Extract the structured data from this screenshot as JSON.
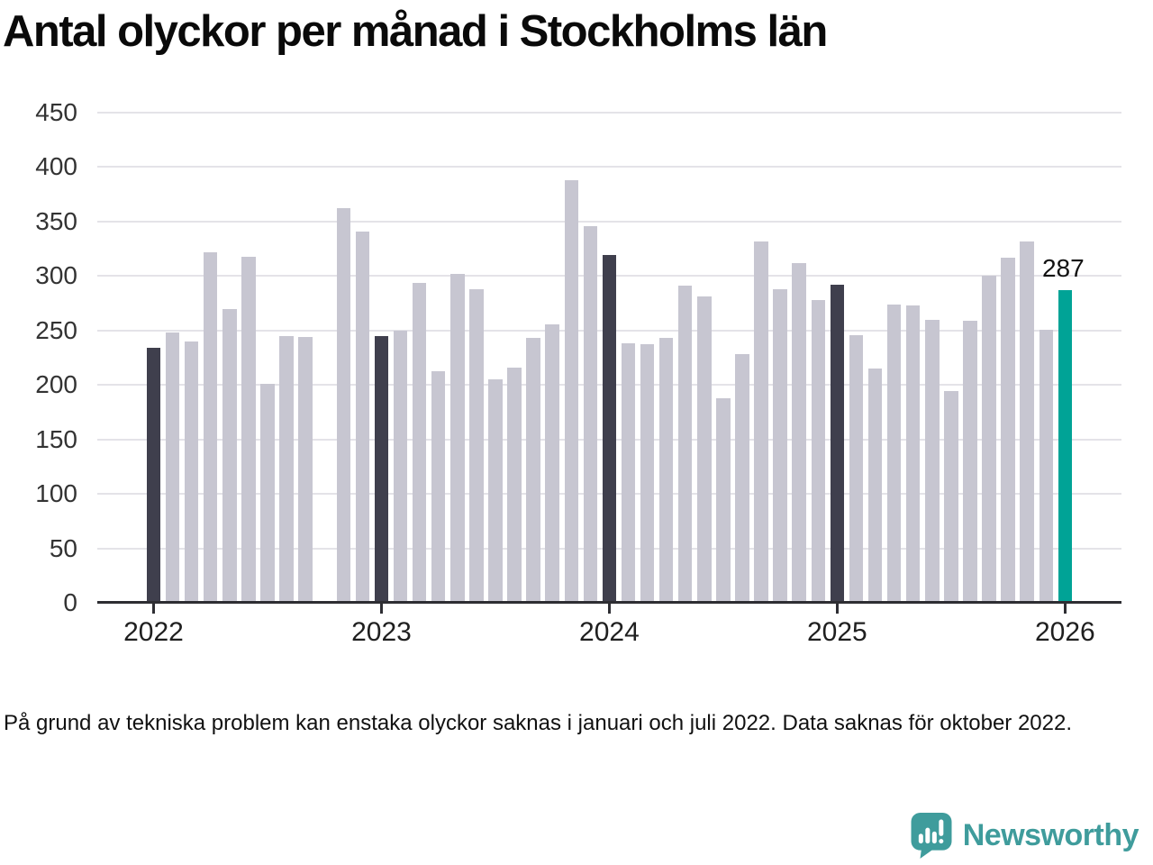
{
  "chart_data": {
    "type": "bar",
    "title": "Antal olyckor per månad i Stockholms län",
    "x_axis": {
      "tick_labels": [
        "2022",
        "2023",
        "2024",
        "2025",
        "2026"
      ]
    },
    "y_axis": {
      "ticks": [
        0,
        50,
        100,
        150,
        200,
        250,
        300,
        350,
        400,
        450
      ],
      "range": [
        0,
        450
      ],
      "grid": true
    },
    "series": [
      {
        "year": "2022",
        "values": [
          234,
          248,
          240,
          322,
          270,
          318,
          201,
          245,
          244,
          null,
          362,
          341
        ]
      },
      {
        "year": "2023",
        "values": [
          245,
          250,
          294,
          213,
          302,
          288,
          205,
          216,
          243,
          256,
          388,
          346
        ]
      },
      {
        "year": "2024",
        "values": [
          319,
          238,
          237,
          243,
          291,
          281,
          188,
          228,
          332,
          288,
          312,
          278
        ]
      },
      {
        "year": "2025",
        "values": [
          292,
          246,
          215,
          274,
          273,
          260,
          194,
          259,
          300,
          317,
          332,
          251
        ]
      },
      {
        "year": "2026",
        "values": [
          287
        ]
      }
    ],
    "annotation": {
      "text": "287"
    },
    "legend": "none"
  },
  "colors": {
    "bar_default": "#c7c6d1",
    "bar_january": "#3f3f4d",
    "bar_highlight": "#00a396",
    "gridline": "#e4e3e8",
    "axis": "#2e2e33",
    "logo_teal": "#3f9c9c"
  },
  "footnote": {
    "text": "På grund av tekniska problem kan enstaka olyckor saknas i januari och juli 2022. Data saknas för oktober 2022."
  },
  "logo": {
    "text": "Newsworthy"
  }
}
